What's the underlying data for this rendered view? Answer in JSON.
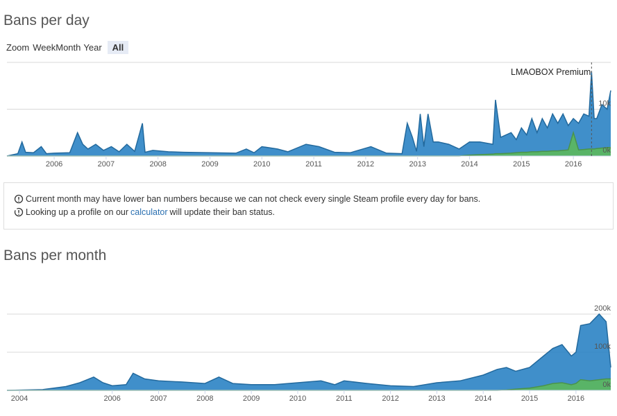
{
  "chart_data": [
    {
      "type": "area",
      "title": "Bans per day",
      "x": [
        2005.09,
        2005.3,
        2005.38,
        2005.45,
        2005.6,
        2005.75,
        2005.85,
        2006.0,
        2006.3,
        2006.45,
        2006.55,
        2006.65,
        2006.8,
        2006.95,
        2007.1,
        2007.25,
        2007.4,
        2007.55,
        2007.7,
        2007.75,
        2007.9,
        2008.2,
        2008.5,
        2009.0,
        2009.5,
        2009.7,
        2009.85,
        2010.0,
        2010.3,
        2010.5,
        2010.85,
        2011.1,
        2011.4,
        2011.7,
        2012.1,
        2012.4,
        2012.7,
        2012.8,
        2012.9,
        2012.98,
        2013.05,
        2013.12,
        2013.2,
        2013.3,
        2013.4,
        2013.6,
        2013.8,
        2014.0,
        2014.2,
        2014.45,
        2014.5,
        2014.6,
        2014.8,
        2014.9,
        2015.0,
        2015.1,
        2015.2,
        2015.3,
        2015.4,
        2015.5,
        2015.6,
        2015.7,
        2015.8,
        2015.9,
        2016.0,
        2016.1,
        2016.2,
        2016.3,
        2016.35,
        2016.4,
        2016.45,
        2016.55,
        2016.65,
        2016.72
      ],
      "series": [
        {
          "color": "#2b83c4",
          "values": [
            0,
            500,
            3000,
            800,
            700,
            2000,
            500,
            600,
            700,
            5000,
            2500,
            1500,
            2500,
            1200,
            2000,
            900,
            2500,
            1000,
            7000,
            800,
            1200,
            900,
            800,
            700,
            600,
            1500,
            700,
            2000,
            1500,
            900,
            2500,
            2000,
            800,
            700,
            2000,
            600,
            500,
            7000,
            4000,
            1000,
            9000,
            2000,
            9000,
            3000,
            3000,
            2500,
            1500,
            3000,
            3000,
            2500,
            12000,
            4000,
            5000,
            3500,
            6000,
            4500,
            8000,
            5000,
            8000,
            6000,
            9000,
            7000,
            9000,
            6500,
            8000,
            7000,
            9000,
            8500,
            18000,
            8000,
            8000,
            11000,
            10000,
            14000
          ]
        },
        {
          "color": "#5cb85c",
          "values": [
            0,
            0,
            0,
            0,
            0,
            0,
            0,
            0,
            0,
            0,
            0,
            0,
            0,
            0,
            0,
            0,
            0,
            0,
            0,
            0,
            0,
            0,
            0,
            0,
            0,
            0,
            0,
            0,
            0,
            0,
            0,
            0,
            0,
            0,
            0,
            0,
            0,
            0,
            0,
            0,
            0,
            0,
            0,
            0,
            0,
            0,
            0,
            200,
            300,
            400,
            500,
            500,
            600,
            700,
            800,
            800,
            900,
            900,
            1000,
            1000,
            1100,
            1100,
            1200,
            1300,
            5000,
            1300,
            1400,
            1500,
            1500,
            1500,
            1600,
            1700,
            1800,
            1800
          ]
        }
      ],
      "xlim": [
        2005.09,
        2016.72
      ],
      "xticks": [
        2006,
        2007,
        2008,
        2009,
        2010,
        2011,
        2012,
        2013,
        2014,
        2015,
        2016
      ],
      "ylim": [
        0,
        20000
      ],
      "yticks": [
        {
          "value": 0,
          "label": "0k"
        },
        {
          "value": 10000,
          "label": "10k"
        }
      ],
      "grid": true,
      "annotation": {
        "text": "LMAOBOX Premium",
        "x": 2016.35
      }
    },
    {
      "type": "area",
      "title": "Bans per month",
      "x": [
        2003.73,
        2004.5,
        2005.0,
        2005.3,
        2005.6,
        2005.8,
        2006.0,
        2006.3,
        2006.45,
        2006.7,
        2007.0,
        2007.5,
        2008.0,
        2008.3,
        2008.6,
        2009.0,
        2009.5,
        2010.0,
        2010.5,
        2010.8,
        2011.0,
        2011.5,
        2012.0,
        2012.5,
        2013.0,
        2013.5,
        2014.0,
        2014.3,
        2014.5,
        2014.7,
        2015.0,
        2015.3,
        2015.5,
        2015.7,
        2015.9,
        2016.0,
        2016.1,
        2016.3,
        2016.5,
        2016.65,
        2016.75
      ],
      "series": [
        {
          "color": "#2b83c4",
          "values": [
            0,
            2000,
            10000,
            20000,
            35000,
            20000,
            12000,
            15000,
            45000,
            30000,
            25000,
            22000,
            18000,
            35000,
            18000,
            15000,
            15000,
            20000,
            25000,
            15000,
            25000,
            18000,
            12000,
            10000,
            20000,
            25000,
            40000,
            55000,
            60000,
            50000,
            60000,
            90000,
            110000,
            120000,
            90000,
            100000,
            170000,
            175000,
            200000,
            180000,
            60000
          ]
        },
        {
          "color": "#5cb85c",
          "values": [
            0,
            0,
            0,
            0,
            0,
            0,
            0,
            0,
            0,
            0,
            0,
            0,
            0,
            0,
            0,
            0,
            0,
            0,
            0,
            0,
            0,
            0,
            0,
            0,
            0,
            0,
            0,
            0,
            1000,
            3000,
            6000,
            12000,
            18000,
            20000,
            15000,
            18000,
            28000,
            25000,
            28000,
            30000,
            30000
          ]
        }
      ],
      "xlim": [
        2003.73,
        2016.75
      ],
      "xticks": [
        2004,
        2006,
        2007,
        2008,
        2009,
        2010,
        2011,
        2012,
        2013,
        2014,
        2015,
        2016
      ],
      "ylim": [
        0,
        220000
      ],
      "yticks": [
        {
          "value": 0,
          "label": "0k"
        },
        {
          "value": 100000,
          "label": "100k"
        },
        {
          "value": 200000,
          "label": "200k"
        }
      ],
      "grid": true
    }
  ],
  "zoom": {
    "label": "Zoom",
    "buttons": [
      "Week",
      "Month",
      "Year",
      "All"
    ],
    "selected": 3
  },
  "notices": [
    "Current month may have lower ban numbers because we can not check every single Steam profile every day for bans.",
    {
      "before": "Looking up a profile on our",
      "link": "calculator",
      "after": "will update their ban status."
    }
  ]
}
